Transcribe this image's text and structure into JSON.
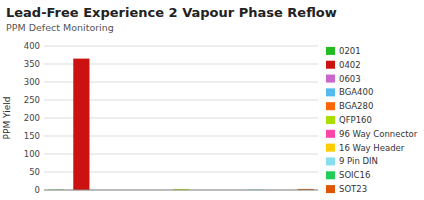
{
  "chart_data": {
    "type": "bar",
    "title": "Lead-Free Experience 2 Vapour Phase Reflow",
    "subtitle": "PPM Defect Monitoring",
    "ylabel": "PPM Yield",
    "categories": [
      "0201",
      "0402",
      "0603",
      "BGA400",
      "BGA280",
      "QFP160",
      "96 Way Connector",
      "16 Way Header",
      "9 Pin DIN",
      "SOIC16",
      "SOT23"
    ],
    "values": [
      1,
      365,
      0,
      0,
      0,
      3,
      0,
      0,
      2,
      0,
      3
    ],
    "colors": [
      "#22bb22",
      "#cc1111",
      "#cc66cc",
      "#55bbee",
      "#ff6600",
      "#aadd00",
      "#ff44aa",
      "#ffcc00",
      "#88ddee",
      "#22cc55",
      "#dd5500"
    ],
    "ylim": [
      0,
      400
    ],
    "yticks": [
      0,
      50,
      100,
      150,
      200,
      250,
      300,
      350,
      400
    ],
    "grid": true,
    "legend": "right",
    "tick_labels": "y"
  }
}
